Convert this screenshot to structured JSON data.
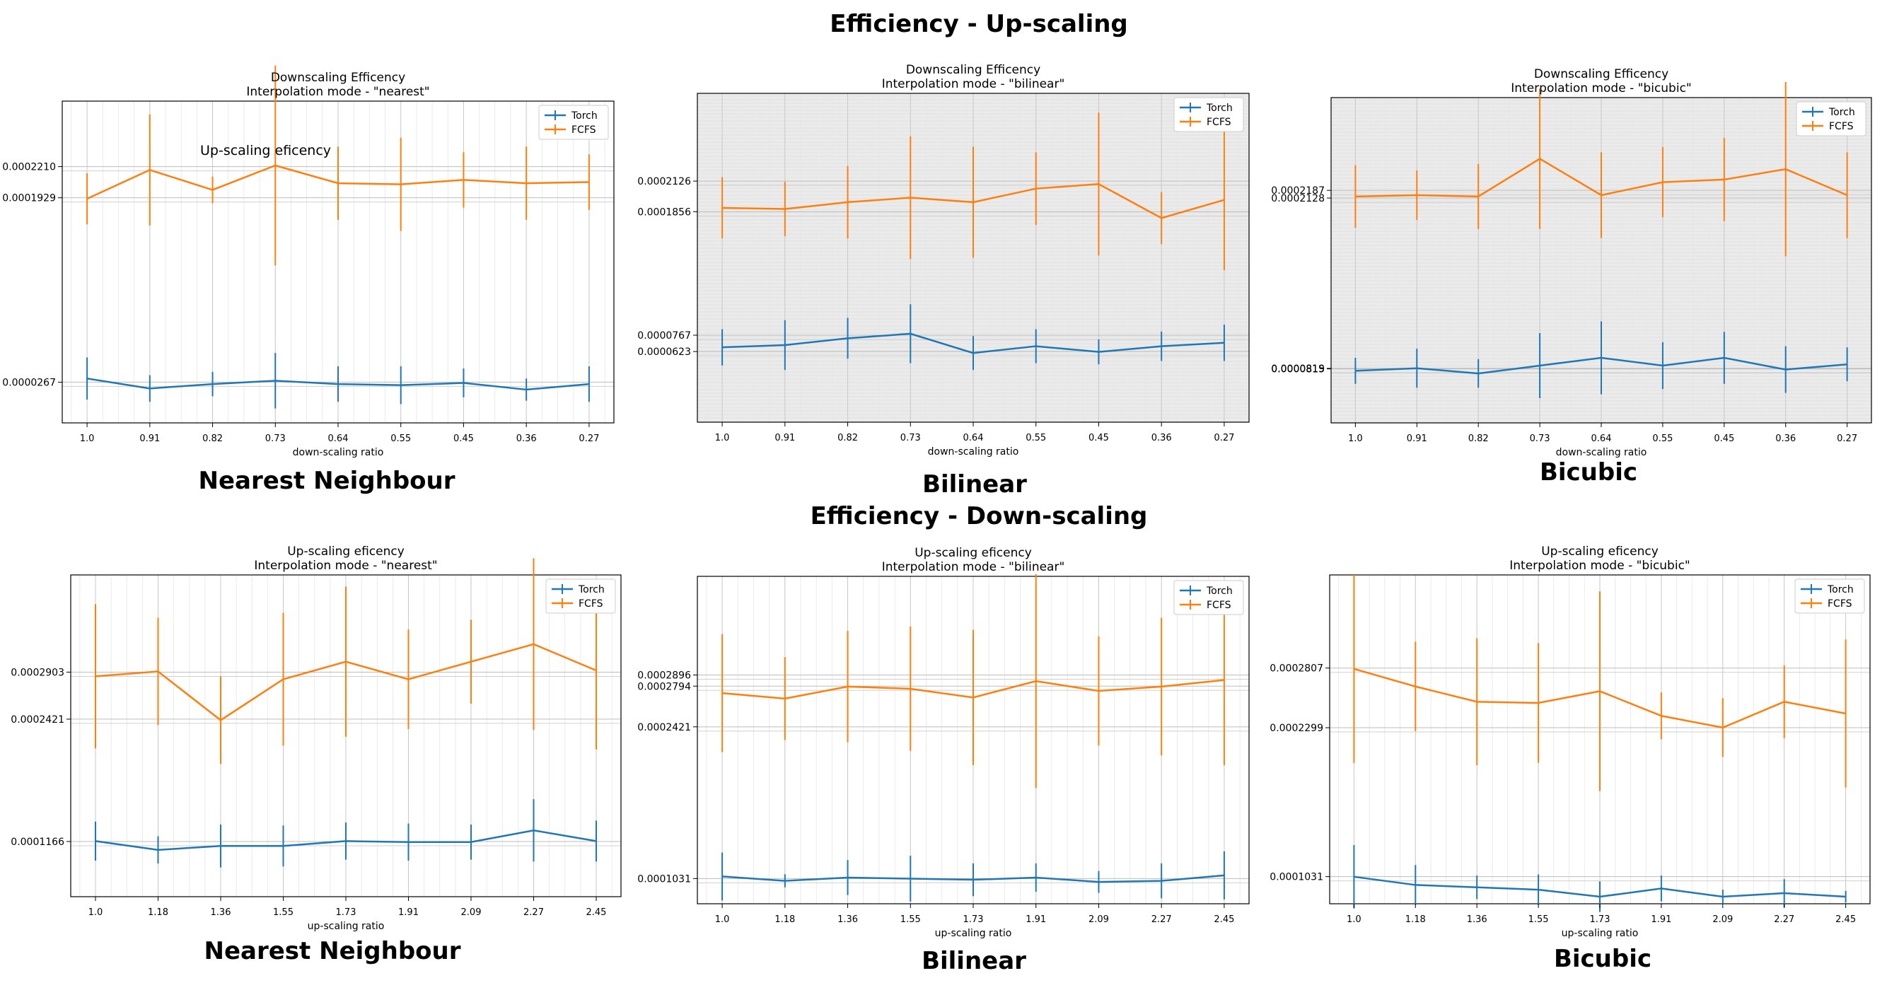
{
  "headings": {
    "up_title": "Efficiency - Up-scaling",
    "down_title": "Efficiency - Down-scaling",
    "labels": [
      "Nearest Neighbour",
      "Bilinear",
      "Bicubic",
      "Nearest Neighbour",
      "Bilinear",
      "Bicubic"
    ]
  },
  "colors": {
    "torch": "#1f77b4",
    "fcfs": "#ff7f0e"
  },
  "chart_data": [
    {
      "type": "line",
      "title": "Downscaling Efficency",
      "subtitle": "Interpolation mode - \"nearest\"",
      "annotation": "Up-scaling eficency",
      "xlabel": "down-scaling ratio",
      "ylabel": "",
      "x": [
        "1.0",
        "0.91",
        "0.82",
        "0.73",
        "0.64",
        "0.55",
        "0.45",
        "0.36",
        "0.27"
      ],
      "ylim": [
        -1e-05,
        0.00028
      ],
      "yticks": [
        "0.0002210",
        "0.0001929",
        "0.0000267"
      ],
      "ytick_values": [
        0.000221,
        0.0001929,
        2.67e-05
      ],
      "grid": true,
      "legend": "top-right",
      "series": [
        {
          "name": "Torch",
          "values": [
            3e-05,
            2.1e-05,
            2.5e-05,
            2.8e-05,
            2.5e-05,
            2.4e-05,
            2.6e-05,
            2e-05,
            2.5e-05
          ],
          "errors": [
            1.9e-05,
            1.2e-05,
            1.1e-05,
            2.5e-05,
            1.6e-05,
            1.7e-05,
            1.3e-05,
            1e-05,
            1.6e-05
          ]
        },
        {
          "name": "FCFS",
          "values": [
            0.000192,
            0.000218,
            0.0002,
            0.000222,
            0.000206,
            0.000205,
            0.000209,
            0.000206,
            0.000207
          ],
          "errors": [
            2.3e-05,
            5e-05,
            1.2e-05,
            9e-05,
            3.3e-05,
            4.2e-05,
            2.5e-05,
            3.3e-05,
            2.5e-05
          ]
        }
      ]
    },
    {
      "type": "line",
      "title": "Downscaling Efficency",
      "subtitle": "Interpolation mode - \"bilinear\"",
      "xlabel": "down-scaling ratio",
      "ylabel": "",
      "x": [
        "1.0",
        "0.91",
        "0.82",
        "0.73",
        "0.64",
        "0.55",
        "0.45",
        "0.36",
        "0.27"
      ],
      "ylim": [
        0,
        0.00029
      ],
      "yticks": [
        "0.0002126",
        "0.0001856",
        "0.0000767",
        "0.0000623"
      ],
      "ytick_values": [
        0.0002126,
        0.0001856,
        7.67e-05,
        6.23e-05
      ],
      "grid": true,
      "legend": "top-right",
      "series": [
        {
          "name": "Torch",
          "values": [
            6.6e-05,
            6.8e-05,
            7.4e-05,
            7.8e-05,
            6.1e-05,
            6.7e-05,
            6.2e-05,
            6.7e-05,
            7e-05
          ],
          "errors": [
            1.6e-05,
            2.2e-05,
            1.8e-05,
            2.6e-05,
            1.5e-05,
            1.5e-05,
            1.1e-05,
            1.3e-05,
            1.6e-05
          ]
        },
        {
          "name": "FCFS",
          "values": [
            0.000189,
            0.000188,
            0.000194,
            0.000198,
            0.000194,
            0.000206,
            0.00021,
            0.00018,
            0.000196
          ],
          "errors": [
            2.7e-05,
            2.4e-05,
            3.2e-05,
            5.4e-05,
            4.9e-05,
            3.2e-05,
            6.3e-05,
            2.3e-05,
            6.2e-05
          ]
        }
      ]
    },
    {
      "type": "line",
      "title": "Downscaling Efficency",
      "subtitle": "Interpolation mode - \"bicubic\"",
      "xlabel": "down-scaling ratio",
      "ylabel": "",
      "x": [
        "1.0",
        "0.91",
        "0.82",
        "0.73",
        "0.64",
        "0.55",
        "0.45",
        "0.36",
        "0.27"
      ],
      "ylim": [
        4e-05,
        0.00029
      ],
      "yticks": [
        "0.0002187",
        "0.0002128",
        "0.0000819",
        "0.0000815"
      ],
      "ytick_values": [
        0.0002187,
        0.0002128,
        8.19e-05,
        8.15e-05
      ],
      "grid": true,
      "legend": "top-right",
      "series": [
        {
          "name": "Torch",
          "values": [
            8e-05,
            8.2e-05,
            7.8e-05,
            8.4e-05,
            9e-05,
            8.4e-05,
            9e-05,
            8.1e-05,
            8.5e-05
          ],
          "errors": [
            1e-05,
            1.5e-05,
            1.1e-05,
            2.5e-05,
            2.8e-05,
            1.8e-05,
            2e-05,
            1.8e-05,
            1.3e-05
          ]
        },
        {
          "name": "FCFS",
          "values": [
            0.000214,
            0.000215,
            0.000214,
            0.000243,
            0.000215,
            0.000225,
            0.000227,
            0.000235,
            0.000215
          ],
          "errors": [
            2.4e-05,
            1.9e-05,
            2.5e-05,
            5.4e-05,
            3.3e-05,
            2.7e-05,
            3.2e-05,
            6.7e-05,
            3.3e-05
          ]
        }
      ]
    },
    {
      "type": "line",
      "title": "Up-scaling eficency",
      "subtitle": "Interpolation mode - \"nearest\"",
      "xlabel": "up-scaling ratio",
      "ylabel": "",
      "x": [
        "1.0",
        "1.18",
        "1.36",
        "1.55",
        "1.73",
        "1.91",
        "2.09",
        "2.27",
        "2.45"
      ],
      "ylim": [
        6e-05,
        0.00039
      ],
      "yticks": [
        "0.0002903",
        "0.0002421",
        "0.0001166"
      ],
      "ytick_values": [
        0.0002903,
        0.0002421,
        0.0001166
      ],
      "grid": true,
      "legend": "top-right",
      "series": [
        {
          "name": "Torch",
          "values": [
            0.000117,
            0.000108,
            0.000112,
            0.000112,
            0.000117,
            0.000116,
            0.000116,
            0.000128,
            0.000117
          ],
          "errors": [
            2e-05,
            1.4e-05,
            2.2e-05,
            2.1e-05,
            1.9e-05,
            1.9e-05,
            1.8e-05,
            3.2e-05,
            2.1e-05
          ]
        },
        {
          "name": "FCFS",
          "values": [
            0.000286,
            0.000291,
            0.000241,
            0.000283,
            0.000301,
            0.000283,
            0.000301,
            0.000319,
            0.000292
          ],
          "errors": [
            7.4e-05,
            5.5e-05,
            4.5e-05,
            6.8e-05,
            7.7e-05,
            5.1e-05,
            4.3e-05,
            8.8e-05,
            8.1e-05
          ]
        }
      ]
    },
    {
      "type": "line",
      "title": "Up-scaling eficency",
      "subtitle": "Interpolation mode - \"bilinear\"",
      "xlabel": "up-scaling ratio",
      "ylabel": "",
      "x": [
        "1.0",
        "1.18",
        "1.36",
        "1.55",
        "1.73",
        "1.91",
        "2.09",
        "2.27",
        "2.45"
      ],
      "ylim": [
        8e-05,
        0.00038
      ],
      "yticks": [
        "0.0002896",
        "0.0002794",
        "0.0002421",
        "0.0001031"
      ],
      "ytick_values": [
        0.0002896,
        0.0002794,
        0.0002421,
        0.0001031
      ],
      "grid": true,
      "legend": "top-right",
      "series": [
        {
          "name": "Torch",
          "values": [
            0.000105,
            0.000101,
            0.000104,
            0.000103,
            0.000102,
            0.000104,
            0.0001,
            0.000101,
            0.000106
          ],
          "errors": [
            2.2e-05,
            6e-06,
            1.6e-05,
            2.1e-05,
            1.5e-05,
            1.3e-05,
            1e-05,
            1.6e-05,
            2.2e-05
          ]
        },
        {
          "name": "FCFS",
          "values": [
            0.000273,
            0.000268,
            0.000279,
            0.000277,
            0.000269,
            0.000284,
            0.000275,
            0.000279,
            0.000285
          ],
          "errors": [
            5.4e-05,
            3.8e-05,
            5.1e-05,
            5.7e-05,
            6.2e-05,
            9.8e-05,
            5e-05,
            6.3e-05,
            7.8e-05
          ]
        }
      ]
    },
    {
      "type": "line",
      "title": "Up-scaling eficency",
      "subtitle": "Interpolation mode - \"bicubic\"",
      "xlabel": "up-scaling ratio",
      "ylabel": "",
      "x": [
        "1.0",
        "1.18",
        "1.36",
        "1.55",
        "1.73",
        "1.91",
        "2.09",
        "2.27",
        "2.45"
      ],
      "ylim": [
        8e-05,
        0.00036
      ],
      "yticks": [
        "0.0002807",
        "0.0002299",
        "0.0001031"
      ],
      "ytick_values": [
        0.0002807,
        0.0002299,
        0.0001031
      ],
      "grid": true,
      "legend": "top-right",
      "series": [
        {
          "name": "Torch",
          "values": [
            0.000103,
            9.6e-05,
            9.4e-05,
            9.2e-05,
            8.6e-05,
            9.3e-05,
            8.6e-05,
            8.9e-05,
            8.6e-05
          ],
          "errors": [
            2.7e-05,
            1.7e-05,
            1e-05,
            1.3e-05,
            1.3e-05,
            1.1e-05,
            6e-06,
            1.2e-05,
            5e-06
          ]
        },
        {
          "name": "FCFS",
          "values": [
            0.00028,
            0.000265,
            0.000252,
            0.000251,
            0.000261,
            0.00024,
            0.00023,
            0.000252,
            0.000242
          ],
          "errors": [
            8e-05,
            3.8e-05,
            5.4e-05,
            5.1e-05,
            8.5e-05,
            2e-05,
            2.5e-05,
            3.1e-05,
            6.3e-05
          ]
        }
      ]
    }
  ]
}
